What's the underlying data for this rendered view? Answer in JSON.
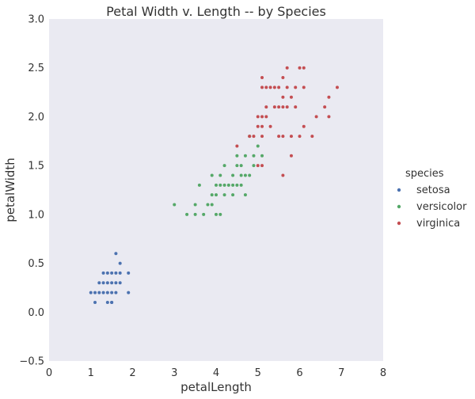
{
  "chart_data": {
    "type": "scatter",
    "title": "Petal Width v. Length -- by Species",
    "xlabel": "petalLength",
    "ylabel": "petalWidth",
    "xlim": [
      0,
      8
    ],
    "ylim": [
      -0.5,
      3.0
    ],
    "xticks": [
      "0",
      "1",
      "2",
      "3",
      "4",
      "5",
      "6",
      "7",
      "8"
    ],
    "yticks": [
      "−0.5",
      "0.0",
      "0.5",
      "1.0",
      "1.5",
      "2.0",
      "2.5",
      "3.0"
    ],
    "grid": false,
    "legend": {
      "title": "species",
      "placement": "right"
    },
    "series": [
      {
        "name": "setosa",
        "color": "#4c72b0",
        "points": [
          [
            1.0,
            0.2
          ],
          [
            1.1,
            0.1
          ],
          [
            1.2,
            0.2
          ],
          [
            1.3,
            0.2
          ],
          [
            1.3,
            0.3
          ],
          [
            1.4,
            0.2
          ],
          [
            1.4,
            0.1
          ],
          [
            1.4,
            0.3
          ],
          [
            1.5,
            0.2
          ],
          [
            1.5,
            0.4
          ],
          [
            1.5,
            0.1
          ],
          [
            1.6,
            0.2
          ],
          [
            1.6,
            0.6
          ],
          [
            1.6,
            0.4
          ],
          [
            1.7,
            0.4
          ],
          [
            1.7,
            0.3
          ],
          [
            1.7,
            0.5
          ],
          [
            1.9,
            0.2
          ],
          [
            1.9,
            0.4
          ],
          [
            1.2,
            0.3
          ],
          [
            1.5,
            0.3
          ],
          [
            1.6,
            0.3
          ],
          [
            1.3,
            0.4
          ],
          [
            1.4,
            0.4
          ],
          [
            1.5,
            0.1
          ],
          [
            1.1,
            0.2
          ]
        ]
      },
      {
        "name": "versicolor",
        "color": "#55a868",
        "points": [
          [
            3.0,
            1.1
          ],
          [
            3.3,
            1.0
          ],
          [
            3.5,
            1.0
          ],
          [
            3.6,
            1.3
          ],
          [
            3.7,
            1.0
          ],
          [
            3.8,
            1.1
          ],
          [
            3.9,
            1.1
          ],
          [
            3.9,
            1.2
          ],
          [
            3.9,
            1.4
          ],
          [
            4.0,
            1.0
          ],
          [
            4.0,
            1.2
          ],
          [
            4.0,
            1.3
          ],
          [
            4.1,
            1.0
          ],
          [
            4.1,
            1.3
          ],
          [
            4.2,
            1.2
          ],
          [
            4.2,
            1.3
          ],
          [
            4.2,
            1.5
          ],
          [
            4.3,
            1.3
          ],
          [
            4.4,
            1.2
          ],
          [
            4.4,
            1.3
          ],
          [
            4.4,
            1.4
          ],
          [
            4.5,
            1.3
          ],
          [
            4.5,
            1.5
          ],
          [
            4.6,
            1.3
          ],
          [
            4.6,
            1.4
          ],
          [
            4.6,
            1.5
          ],
          [
            4.7,
            1.2
          ],
          [
            4.7,
            1.4
          ],
          [
            4.7,
            1.6
          ],
          [
            4.8,
            1.4
          ],
          [
            4.8,
            1.8
          ],
          [
            4.9,
            1.5
          ],
          [
            5.0,
            1.7
          ],
          [
            5.1,
            1.6
          ],
          [
            3.5,
            1.1
          ],
          [
            4.1,
            1.4
          ],
          [
            4.5,
            1.6
          ],
          [
            4.9,
            1.6
          ]
        ]
      },
      {
        "name": "virginica",
        "color": "#c44e52",
        "points": [
          [
            4.5,
            1.7
          ],
          [
            4.8,
            1.8
          ],
          [
            4.9,
            1.8
          ],
          [
            5.0,
            1.5
          ],
          [
            5.0,
            1.9
          ],
          [
            5.0,
            2.0
          ],
          [
            5.1,
            1.5
          ],
          [
            5.1,
            1.8
          ],
          [
            5.1,
            1.9
          ],
          [
            5.1,
            2.0
          ],
          [
            5.1,
            2.3
          ],
          [
            5.1,
            2.4
          ],
          [
            5.2,
            2.0
          ],
          [
            5.2,
            2.3
          ],
          [
            5.3,
            1.9
          ],
          [
            5.3,
            2.3
          ],
          [
            5.4,
            2.1
          ],
          [
            5.4,
            2.3
          ],
          [
            5.5,
            1.8
          ],
          [
            5.5,
            2.1
          ],
          [
            5.6,
            1.4
          ],
          [
            5.6,
            1.8
          ],
          [
            5.6,
            2.1
          ],
          [
            5.6,
            2.2
          ],
          [
            5.6,
            2.4
          ],
          [
            5.7,
            2.1
          ],
          [
            5.7,
            2.3
          ],
          [
            5.7,
            2.5
          ],
          [
            5.8,
            1.6
          ],
          [
            5.8,
            1.8
          ],
          [
            5.8,
            2.2
          ],
          [
            5.9,
            2.1
          ],
          [
            5.9,
            2.3
          ],
          [
            6.0,
            1.8
          ],
          [
            6.0,
            2.5
          ],
          [
            6.1,
            1.9
          ],
          [
            6.1,
            2.3
          ],
          [
            6.1,
            2.5
          ],
          [
            6.3,
            1.8
          ],
          [
            6.4,
            2.0
          ],
          [
            6.6,
            2.1
          ],
          [
            6.7,
            2.0
          ],
          [
            6.7,
            2.2
          ],
          [
            6.9,
            2.3
          ],
          [
            5.2,
            2.1
          ],
          [
            5.5,
            2.3
          ]
        ]
      }
    ]
  }
}
